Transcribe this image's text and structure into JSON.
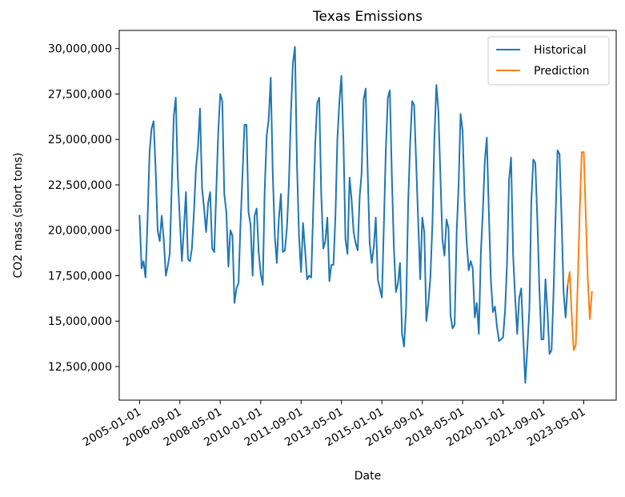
{
  "chart_data": {
    "type": "line",
    "title": "Texas Emissions",
    "xlabel": "Date",
    "ylabel": "CO2 mass (short tons)",
    "legend": {
      "placement": "top-right",
      "entries": [
        "Historical",
        "Prediction"
      ]
    },
    "grid": false,
    "xlim": [
      "2004-03-01",
      "2024-09-01"
    ],
    "ylim": [
      10650000,
      31000000
    ],
    "x_ticks": [
      "2005-01-01",
      "2006-09-01",
      "2008-05-01",
      "2010-01-01",
      "2011-09-01",
      "2013-05-01",
      "2015-01-01",
      "2016-09-01",
      "2018-05-01",
      "2020-01-01",
      "2021-09-01",
      "2023-05-01"
    ],
    "y_ticks": [
      12500000,
      15000000,
      17500000,
      20000000,
      22500000,
      25000000,
      27500000,
      30000000
    ],
    "y_tick_labels": [
      "12,500,000",
      "15,000,000",
      "17,500,000",
      "20,000,000",
      "22,500,000",
      "25,000,000",
      "27,500,000",
      "30,000,000"
    ],
    "series": [
      {
        "name": "Historical",
        "color": "#1f77b4",
        "points": [
          [
            "2005-01-01",
            20800000
          ],
          [
            "2005-02-01",
            17900000
          ],
          [
            "2005-03-01",
            18300000
          ],
          [
            "2005-04-01",
            17400000
          ],
          [
            "2005-05-01",
            20500000
          ],
          [
            "2005-06-01",
            24300000
          ],
          [
            "2005-07-01",
            25600000
          ],
          [
            "2005-08-01",
            26000000
          ],
          [
            "2005-09-01",
            23300000
          ],
          [
            "2005-10-01",
            20000000
          ],
          [
            "2005-11-01",
            19400000
          ],
          [
            "2005-12-01",
            20800000
          ],
          [
            "2006-01-01",
            19500000
          ],
          [
            "2006-02-01",
            17500000
          ],
          [
            "2006-03-01",
            18000000
          ],
          [
            "2006-04-01",
            18700000
          ],
          [
            "2006-05-01",
            22400000
          ],
          [
            "2006-06-01",
            26300000
          ],
          [
            "2006-07-01",
            27300000
          ],
          [
            "2006-08-01",
            22900000
          ],
          [
            "2006-09-01",
            20500000
          ],
          [
            "2006-10-01",
            18300000
          ],
          [
            "2006-11-01",
            20100000
          ],
          [
            "2006-12-01",
            22100000
          ],
          [
            "2007-01-01",
            18400000
          ],
          [
            "2007-02-01",
            18300000
          ],
          [
            "2007-03-01",
            19000000
          ],
          [
            "2007-04-01",
            21000000
          ],
          [
            "2007-05-01",
            23400000
          ],
          [
            "2007-06-01",
            24600000
          ],
          [
            "2007-07-01",
            26700000
          ],
          [
            "2007-08-01",
            22300000
          ],
          [
            "2007-09-01",
            21200000
          ],
          [
            "2007-10-01",
            19900000
          ],
          [
            "2007-11-01",
            21500000
          ],
          [
            "2007-12-01",
            22100000
          ],
          [
            "2008-01-01",
            19000000
          ],
          [
            "2008-02-01",
            18800000
          ],
          [
            "2008-03-01",
            22000000
          ],
          [
            "2008-04-01",
            25400000
          ],
          [
            "2008-05-01",
            27500000
          ],
          [
            "2008-06-01",
            27100000
          ],
          [
            "2008-07-01",
            22000000
          ],
          [
            "2008-08-01",
            21000000
          ],
          [
            "2008-09-01",
            18000000
          ],
          [
            "2008-10-01",
            20000000
          ],
          [
            "2008-11-01",
            19700000
          ],
          [
            "2008-12-01",
            16000000
          ],
          [
            "2009-01-01",
            16800000
          ],
          [
            "2009-02-01",
            17100000
          ],
          [
            "2009-03-01",
            20200000
          ],
          [
            "2009-04-01",
            23000000
          ],
          [
            "2009-05-01",
            25800000
          ],
          [
            "2009-06-01",
            25800000
          ],
          [
            "2009-07-01",
            21000000
          ],
          [
            "2009-08-01",
            20300000
          ],
          [
            "2009-09-01",
            17500000
          ],
          [
            "2009-10-01",
            20800000
          ],
          [
            "2009-11-01",
            21200000
          ],
          [
            "2009-12-01",
            18800000
          ],
          [
            "2010-01-01",
            17600000
          ],
          [
            "2010-02-01",
            17000000
          ],
          [
            "2010-03-01",
            22100000
          ],
          [
            "2010-04-01",
            25200000
          ],
          [
            "2010-05-01",
            26100000
          ],
          [
            "2010-06-01",
            28400000
          ],
          [
            "2010-07-01",
            23200000
          ],
          [
            "2010-08-01",
            19700000
          ],
          [
            "2010-09-01",
            18200000
          ],
          [
            "2010-10-01",
            20600000
          ],
          [
            "2010-11-01",
            22000000
          ],
          [
            "2010-12-01",
            18800000
          ],
          [
            "2011-01-01",
            18900000
          ],
          [
            "2011-02-01",
            20200000
          ],
          [
            "2011-03-01",
            22500000
          ],
          [
            "2011-04-01",
            26400000
          ],
          [
            "2011-05-01",
            29200000
          ],
          [
            "2011-06-01",
            30100000
          ],
          [
            "2011-07-01",
            23700000
          ],
          [
            "2011-08-01",
            19700000
          ],
          [
            "2011-09-01",
            17700000
          ],
          [
            "2011-10-01",
            20400000
          ],
          [
            "2011-11-01",
            18900000
          ],
          [
            "2011-12-01",
            17300000
          ],
          [
            "2012-01-01",
            17500000
          ],
          [
            "2012-02-01",
            17400000
          ],
          [
            "2012-03-01",
            21000000
          ],
          [
            "2012-04-01",
            24700000
          ],
          [
            "2012-05-01",
            27000000
          ],
          [
            "2012-06-01",
            27300000
          ],
          [
            "2012-07-01",
            22000000
          ],
          [
            "2012-08-01",
            19000000
          ],
          [
            "2012-09-01",
            19400000
          ],
          [
            "2012-10-01",
            20700000
          ],
          [
            "2012-11-01",
            17200000
          ],
          [
            "2012-12-01",
            18100000
          ],
          [
            "2013-01-01",
            18100000
          ],
          [
            "2013-02-01",
            20900000
          ],
          [
            "2013-03-01",
            25000000
          ],
          [
            "2013-04-01",
            27100000
          ],
          [
            "2013-05-01",
            28500000
          ],
          [
            "2013-06-01",
            24900000
          ],
          [
            "2013-07-01",
            19500000
          ],
          [
            "2013-08-01",
            18700000
          ],
          [
            "2013-09-01",
            22900000
          ],
          [
            "2013-10-01",
            21700000
          ],
          [
            "2013-11-01",
            19900000
          ],
          [
            "2013-12-01",
            19300000
          ],
          [
            "2014-01-01",
            18900000
          ],
          [
            "2014-02-01",
            21900000
          ],
          [
            "2014-03-01",
            23100000
          ],
          [
            "2014-04-01",
            27200000
          ],
          [
            "2014-05-01",
            27800000
          ],
          [
            "2014-06-01",
            23200000
          ],
          [
            "2014-07-01",
            19300000
          ],
          [
            "2014-08-01",
            18200000
          ],
          [
            "2014-09-01",
            19100000
          ],
          [
            "2014-10-01",
            20700000
          ],
          [
            "2014-11-01",
            17300000
          ],
          [
            "2014-12-01",
            16800000
          ],
          [
            "2015-01-01",
            16300000
          ],
          [
            "2015-02-01",
            20400000
          ],
          [
            "2015-03-01",
            24400000
          ],
          [
            "2015-04-01",
            27300000
          ],
          [
            "2015-05-01",
            27700000
          ],
          [
            "2015-06-01",
            22900000
          ],
          [
            "2015-07-01",
            19000000
          ],
          [
            "2015-08-01",
            16600000
          ],
          [
            "2015-09-01",
            17100000
          ],
          [
            "2015-10-01",
            18200000
          ],
          [
            "2015-11-01",
            14300000
          ],
          [
            "2015-12-01",
            13600000
          ],
          [
            "2016-01-01",
            15700000
          ],
          [
            "2016-02-01",
            21500000
          ],
          [
            "2016-03-01",
            24700000
          ],
          [
            "2016-04-01",
            27100000
          ],
          [
            "2016-05-01",
            26900000
          ],
          [
            "2016-06-01",
            23700000
          ],
          [
            "2016-07-01",
            20500000
          ],
          [
            "2016-08-01",
            17300000
          ],
          [
            "2016-09-01",
            20700000
          ],
          [
            "2016-10-01",
            19900000
          ],
          [
            "2016-11-01",
            15000000
          ],
          [
            "2016-12-01",
            16000000
          ],
          [
            "2017-01-01",
            17400000
          ],
          [
            "2017-02-01",
            20400000
          ],
          [
            "2017-03-01",
            24900000
          ],
          [
            "2017-04-01",
            28000000
          ],
          [
            "2017-05-01",
            26600000
          ],
          [
            "2017-06-01",
            23000000
          ],
          [
            "2017-07-01",
            19500000
          ],
          [
            "2017-08-01",
            18600000
          ],
          [
            "2017-09-01",
            20600000
          ],
          [
            "2017-10-01",
            20100000
          ],
          [
            "2017-11-01",
            15300000
          ],
          [
            "2017-12-01",
            14600000
          ],
          [
            "2018-01-01",
            14800000
          ],
          [
            "2018-02-01",
            19900000
          ],
          [
            "2018-03-01",
            22400000
          ],
          [
            "2018-04-01",
            26400000
          ],
          [
            "2018-05-01",
            25500000
          ],
          [
            "2018-06-01",
            21700000
          ],
          [
            "2018-07-01",
            19400000
          ],
          [
            "2018-08-01",
            17800000
          ],
          [
            "2018-09-01",
            18300000
          ],
          [
            "2018-10-01",
            17900000
          ],
          [
            "2018-11-01",
            15200000
          ],
          [
            "2018-12-01",
            16000000
          ],
          [
            "2019-01-01",
            14300000
          ],
          [
            "2019-02-01",
            18800000
          ],
          [
            "2019-03-01",
            20900000
          ],
          [
            "2019-04-01",
            23800000
          ],
          [
            "2019-05-01",
            25100000
          ],
          [
            "2019-06-01",
            21000000
          ],
          [
            "2019-07-01",
            17300000
          ],
          [
            "2019-08-01",
            15500000
          ],
          [
            "2019-09-01",
            15800000
          ],
          [
            "2019-10-01",
            14700000
          ],
          [
            "2019-11-01",
            13900000
          ],
          [
            "2019-12-01",
            14000000
          ],
          [
            "2020-01-01",
            14100000
          ],
          [
            "2020-02-01",
            15600000
          ],
          [
            "2020-03-01",
            18200000
          ],
          [
            "2020-04-01",
            22800000
          ],
          [
            "2020-05-01",
            24000000
          ],
          [
            "2020-06-01",
            18600000
          ],
          [
            "2020-07-01",
            16300000
          ],
          [
            "2020-08-01",
            14300000
          ],
          [
            "2020-09-01",
            16300000
          ],
          [
            "2020-10-01",
            16800000
          ],
          [
            "2020-11-01",
            14000000
          ],
          [
            "2020-12-01",
            11600000
          ],
          [
            "2021-01-01",
            13500000
          ],
          [
            "2021-02-01",
            15700000
          ],
          [
            "2021-03-01",
            21500000
          ],
          [
            "2021-04-01",
            23900000
          ],
          [
            "2021-05-01",
            23700000
          ],
          [
            "2021-06-01",
            20600000
          ],
          [
            "2021-07-01",
            16800000
          ],
          [
            "2021-08-01",
            14000000
          ],
          [
            "2021-09-01",
            14000000
          ],
          [
            "2021-10-01",
            17300000
          ],
          [
            "2021-11-01",
            15500000
          ],
          [
            "2021-12-01",
            13200000
          ],
          [
            "2022-01-01",
            13400000
          ],
          [
            "2022-02-01",
            16700000
          ],
          [
            "2022-03-01",
            20600000
          ],
          [
            "2022-04-01",
            24400000
          ],
          [
            "2022-05-01",
            24200000
          ],
          [
            "2022-06-01",
            20600000
          ],
          [
            "2022-07-01",
            16600000
          ],
          [
            "2022-08-01",
            15200000
          ],
          [
            "2022-09-01",
            17000000
          ]
        ]
      },
      {
        "name": "Prediction",
        "color": "#ff7f0e",
        "points": [
          [
            "2022-09-01",
            17000000
          ],
          [
            "2022-10-01",
            17700000
          ],
          [
            "2022-11-01",
            15300000
          ],
          [
            "2022-12-01",
            13400000
          ],
          [
            "2023-01-01",
            13700000
          ],
          [
            "2023-02-01",
            17300000
          ],
          [
            "2023-03-01",
            21000000
          ],
          [
            "2023-04-01",
            24300000
          ],
          [
            "2023-05-01",
            24300000
          ],
          [
            "2023-06-01",
            20800000
          ],
          [
            "2023-07-01",
            17300000
          ],
          [
            "2023-08-01",
            15100000
          ],
          [
            "2023-09-01",
            16600000
          ]
        ]
      }
    ]
  }
}
